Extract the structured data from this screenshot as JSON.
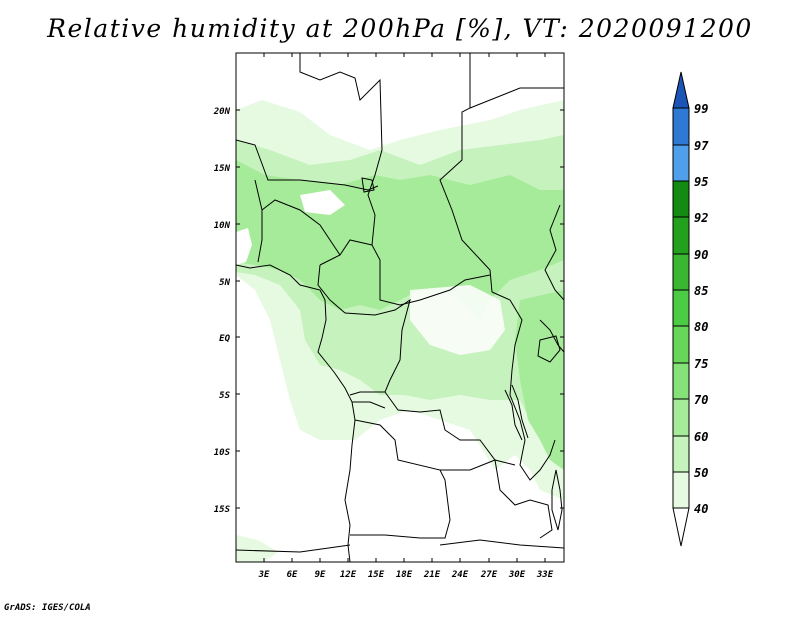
{
  "title": "Relative humidity at 200hPa [%], VT: 2020091200",
  "credit": "GrADS: IGES/COLA",
  "map": {
    "lat_labels": [
      "20N",
      "15N",
      "10N",
      "5N",
      "EQ",
      "5S",
      "10S",
      "15S"
    ],
    "lon_labels": [
      "3E",
      "6E",
      "9E",
      "12E",
      "15E",
      "18E",
      "21E",
      "24E",
      "27E",
      "30E",
      "33E"
    ]
  },
  "colorbar": {
    "labels": [
      "99",
      "97",
      "95",
      "92",
      "90",
      "85",
      "80",
      "75",
      "70",
      "60",
      "50",
      "40"
    ],
    "colors": [
      "#ffffff",
      "#e6fae1",
      "#c6f2bd",
      "#a6eb99",
      "#85e278",
      "#68d65b",
      "#4ccb45",
      "#3bb633",
      "#24a01f",
      "#138a11",
      "#4f9fea",
      "#2f78d4",
      "#1c55b8"
    ]
  },
  "colors": {
    "land_border": "#000000",
    "background": "#ffffff"
  }
}
